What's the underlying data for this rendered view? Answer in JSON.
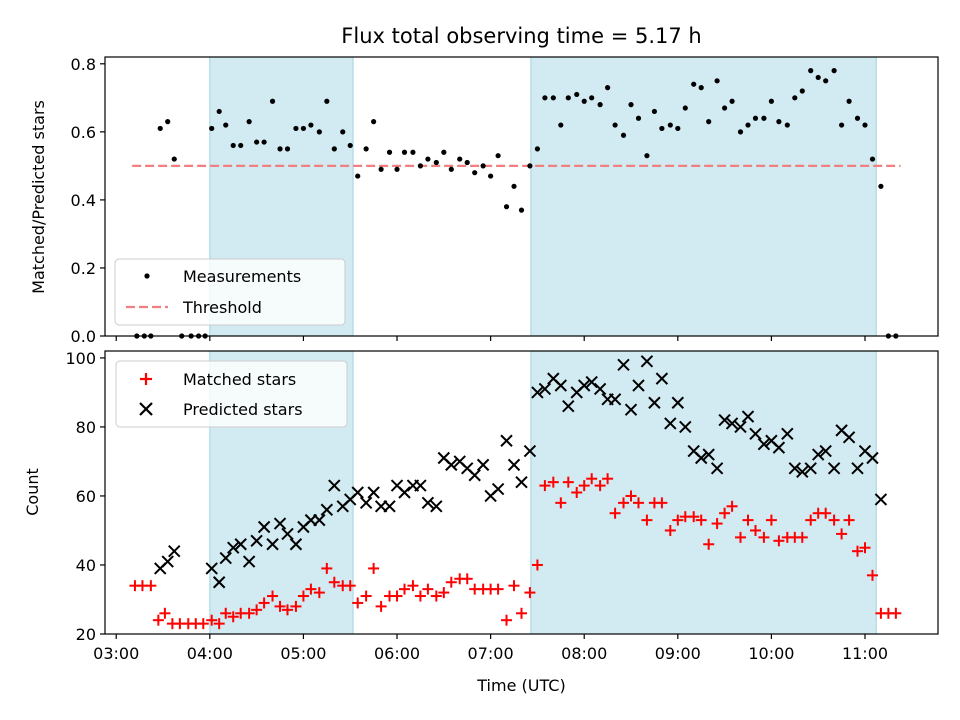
{
  "chart_data": [
    {
      "type": "scatter",
      "panel": "top",
      "title": "Flux total observing time = 5.17 h",
      "ylabel": "Matched/Predicted stars",
      "xlabel": "",
      "ylim": [
        0,
        0.82
      ],
      "yticks": [
        0.0,
        0.2,
        0.4,
        0.6,
        0.8
      ],
      "ytick_labels": [
        "0.0",
        "0.2",
        "0.4",
        "0.6",
        "0.8"
      ],
      "threshold": 0.5,
      "legend": {
        "position": "lower-left",
        "measurements_label": "Measurements",
        "threshold_label": "Threshold"
      },
      "series": [
        {
          "name": "Measurements",
          "x": [
            3.22,
            3.3,
            3.37,
            3.47,
            3.55,
            3.62,
            3.7,
            3.8,
            3.88,
            3.95,
            4.02,
            4.1,
            4.17,
            4.25,
            4.33,
            4.42,
            4.5,
            4.58,
            4.67,
            4.75,
            4.83,
            4.92,
            5.0,
            5.08,
            5.17,
            5.25,
            5.33,
            5.42,
            5.5,
            5.58,
            5.67,
            5.75,
            5.83,
            5.92,
            6.0,
            6.08,
            6.17,
            6.25,
            6.33,
            6.42,
            6.5,
            6.58,
            6.67,
            6.75,
            6.83,
            6.92,
            7.0,
            7.08,
            7.17,
            7.25,
            7.33,
            7.42,
            7.5,
            7.58,
            7.67,
            7.75,
            7.83,
            7.92,
            8.0,
            8.08,
            8.17,
            8.25,
            8.33,
            8.42,
            8.5,
            8.58,
            8.67,
            8.75,
            8.83,
            8.92,
            9.0,
            9.08,
            9.17,
            9.25,
            9.33,
            9.42,
            9.5,
            9.58,
            9.67,
            9.75,
            9.83,
            9.92,
            10.0,
            10.08,
            10.17,
            10.25,
            10.33,
            10.42,
            10.5,
            10.58,
            10.67,
            10.75,
            10.83,
            10.92,
            11.0,
            11.08,
            11.17,
            11.25,
            11.33
          ],
          "y": [
            0.0,
            0.0,
            0.0,
            0.61,
            0.63,
            0.52,
            0.0,
            0.0,
            0.0,
            0.0,
            0.61,
            0.66,
            0.62,
            0.56,
            0.56,
            0.63,
            0.57,
            0.57,
            0.69,
            0.55,
            0.55,
            0.61,
            0.61,
            0.62,
            0.6,
            0.69,
            0.55,
            0.6,
            0.56,
            0.47,
            0.55,
            0.63,
            0.49,
            0.54,
            0.49,
            0.54,
            0.54,
            0.5,
            0.52,
            0.51,
            0.54,
            0.49,
            0.52,
            0.51,
            0.48,
            0.5,
            0.47,
            0.53,
            0.38,
            0.44,
            0.37,
            0.5,
            0.55,
            0.7,
            0.7,
            0.62,
            0.7,
            0.71,
            0.69,
            0.7,
            0.68,
            0.73,
            0.62,
            0.59,
            0.68,
            0.64,
            0.53,
            0.66,
            0.61,
            0.62,
            0.61,
            0.67,
            0.74,
            0.73,
            0.63,
            0.75,
            0.67,
            0.69,
            0.6,
            0.62,
            0.64,
            0.64,
            0.69,
            0.63,
            0.62,
            0.7,
            0.72,
            0.78,
            0.76,
            0.75,
            0.78,
            0.62,
            0.69,
            0.64,
            0.62,
            0.52,
            0.44,
            0.0,
            0.0
          ]
        }
      ]
    },
    {
      "type": "scatter",
      "panel": "bottom",
      "xlabel": "Time (UTC)",
      "ylabel": "Count",
      "ylim": [
        20,
        102
      ],
      "yticks": [
        20,
        40,
        60,
        80,
        100
      ],
      "ytick_labels": [
        "20",
        "40",
        "60",
        "80",
        "100"
      ],
      "xlim": [
        2.88,
        11.78
      ],
      "xticks": [
        3,
        4,
        5,
        6,
        7,
        8,
        9,
        10,
        11
      ],
      "xtick_labels": [
        "03:00",
        "04:00",
        "05:00",
        "06:00",
        "07:00",
        "08:00",
        "09:00",
        "10:00",
        "11:00"
      ],
      "legend": {
        "position": "top-left",
        "matched_label": "Matched stars",
        "predicted_label": "Predicted stars"
      },
      "series": [
        {
          "name": "Matched stars",
          "x": [
            3.2,
            3.28,
            3.37,
            3.45,
            3.52,
            3.6,
            3.68,
            3.77,
            3.85,
            3.93,
            4.02,
            4.1,
            4.17,
            4.25,
            4.33,
            4.42,
            4.5,
            4.58,
            4.67,
            4.75,
            4.83,
            4.92,
            5.0,
            5.08,
            5.17,
            5.25,
            5.33,
            5.42,
            5.5,
            5.58,
            5.67,
            5.75,
            5.83,
            5.92,
            6.0,
            6.08,
            6.17,
            6.25,
            6.33,
            6.42,
            6.5,
            6.58,
            6.67,
            6.75,
            6.83,
            6.92,
            7.0,
            7.08,
            7.17,
            7.25,
            7.33,
            7.42,
            7.5,
            7.58,
            7.67,
            7.75,
            7.83,
            7.92,
            8.0,
            8.08,
            8.17,
            8.25,
            8.33,
            8.42,
            8.5,
            8.58,
            8.67,
            8.75,
            8.83,
            8.92,
            9.0,
            9.08,
            9.17,
            9.25,
            9.33,
            9.42,
            9.5,
            9.58,
            9.67,
            9.75,
            9.83,
            9.92,
            10.0,
            10.08,
            10.17,
            10.25,
            10.33,
            10.42,
            10.5,
            10.58,
            10.67,
            10.75,
            10.83,
            10.92,
            11.0,
            11.08,
            11.17,
            11.25,
            11.33
          ],
          "y": [
            34,
            34,
            34,
            24,
            26,
            23,
            23,
            23,
            23,
            23,
            24,
            23,
            26,
            25,
            26,
            26,
            27,
            29,
            31,
            28,
            27,
            28,
            31,
            33,
            32,
            39,
            35,
            34,
            34,
            29,
            31,
            39,
            28,
            31,
            31,
            33,
            34,
            31,
            33,
            31,
            32,
            35,
            36,
            36,
            33,
            33,
            33,
            33,
            24,
            34,
            26,
            32,
            40,
            63,
            64,
            58,
            64,
            61,
            63,
            65,
            63,
            65,
            55,
            58,
            60,
            58,
            53,
            58,
            58,
            50,
            53,
            54,
            54,
            53,
            46,
            52,
            55,
            57,
            48,
            53,
            50,
            48,
            53,
            47,
            48,
            48,
            48,
            53,
            55,
            55,
            53,
            49,
            53,
            44,
            45,
            37,
            26,
            26,
            26
          ]
        },
        {
          "name": "Predicted stars",
          "x": [
            3.47,
            3.55,
            3.62,
            4.02,
            4.1,
            4.17,
            4.25,
            4.33,
            4.42,
            4.5,
            4.58,
            4.67,
            4.75,
            4.83,
            4.92,
            5.0,
            5.08,
            5.17,
            5.25,
            5.33,
            5.42,
            5.5,
            5.58,
            5.67,
            5.75,
            5.83,
            5.92,
            6.0,
            6.08,
            6.17,
            6.25,
            6.33,
            6.42,
            6.5,
            6.58,
            6.67,
            6.75,
            6.83,
            6.92,
            7.0,
            7.08,
            7.17,
            7.25,
            7.33,
            7.42,
            7.5,
            7.58,
            7.67,
            7.75,
            7.83,
            7.92,
            8.0,
            8.08,
            8.17,
            8.25,
            8.33,
            8.42,
            8.5,
            8.58,
            8.67,
            8.75,
            8.83,
            8.92,
            9.0,
            9.08,
            9.17,
            9.25,
            9.33,
            9.42,
            9.5,
            9.58,
            9.67,
            9.75,
            9.83,
            9.92,
            10.0,
            10.08,
            10.17,
            10.25,
            10.33,
            10.42,
            10.5,
            10.58,
            10.67,
            10.75,
            10.83,
            10.92,
            11.0,
            11.08,
            11.17
          ],
          "y": [
            39,
            41,
            44,
            39,
            35,
            42,
            45,
            46,
            41,
            47,
            51,
            46,
            52,
            49,
            46,
            51,
            53,
            53,
            56,
            63,
            57,
            59,
            61,
            58,
            61,
            57,
            57,
            63,
            61,
            63,
            63,
            58,
            57,
            71,
            69,
            70,
            68,
            66,
            69,
            60,
            62,
            76,
            69,
            64,
            73,
            90,
            91,
            94,
            92,
            86,
            90,
            92,
            93,
            91,
            88,
            88,
            98,
            85,
            92,
            99,
            87,
            94,
            81,
            87,
            80,
            73,
            71,
            72,
            68,
            82,
            81,
            80,
            83,
            78,
            75,
            76,
            74,
            78,
            68,
            67,
            68,
            72,
            73,
            68,
            79,
            77,
            68,
            73,
            71,
            59
          ]
        }
      ],
      "observing_windows": [
        [
          4.0,
          5.53
        ],
        [
          7.43,
          11.12
        ]
      ]
    }
  ],
  "colors": {
    "measurements": "#000000",
    "threshold": "#f08080",
    "matched": "#ff0000",
    "predicted": "#000000",
    "shade": "#add8e6",
    "legend_bg": "#ffffff"
  }
}
